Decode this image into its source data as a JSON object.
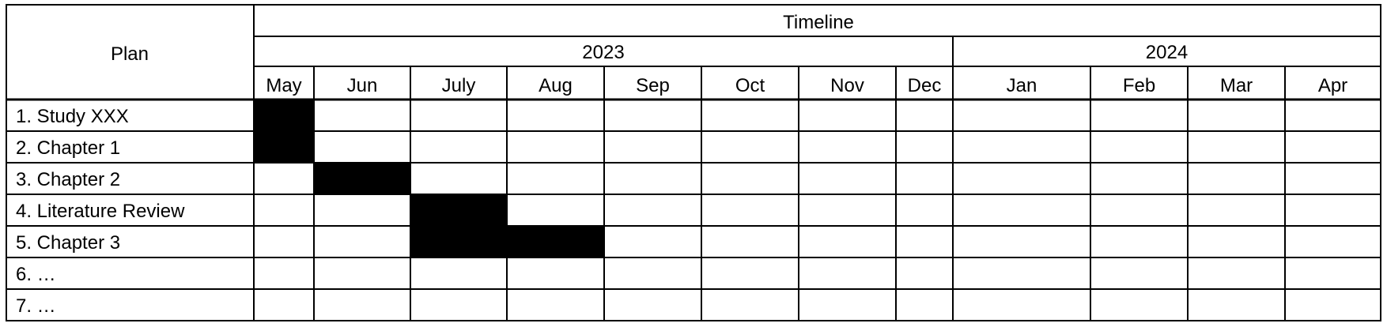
{
  "table": {
    "plan_header": "Plan",
    "timeline_header": "Timeline",
    "years": [
      {
        "label": "2023",
        "span": 8
      },
      {
        "label": "2024",
        "span": 4
      }
    ],
    "months": [
      "May",
      "Jun",
      "July",
      "Aug",
      "Sep",
      "Oct",
      "Nov",
      "Dec",
      "Jan",
      "Feb",
      "Mar",
      "Apr"
    ],
    "tasks": [
      {
        "label": "1. Study XXX",
        "filled_months": [
          "May"
        ]
      },
      {
        "label": "2. Chapter 1",
        "filled_months": [
          "May"
        ]
      },
      {
        "label": "3. Chapter 2",
        "filled_months": [
          "Jun"
        ]
      },
      {
        "label": "4. Literature Review",
        "filled_months": [
          "July"
        ]
      },
      {
        "label": "5. Chapter 3",
        "filled_months": [
          "July",
          "Aug"
        ]
      },
      {
        "label": "6. …",
        "filled_months": []
      },
      {
        "label": "7. …",
        "filled_months": []
      }
    ],
    "fill_color": "#000000",
    "line_color": "#000000"
  }
}
